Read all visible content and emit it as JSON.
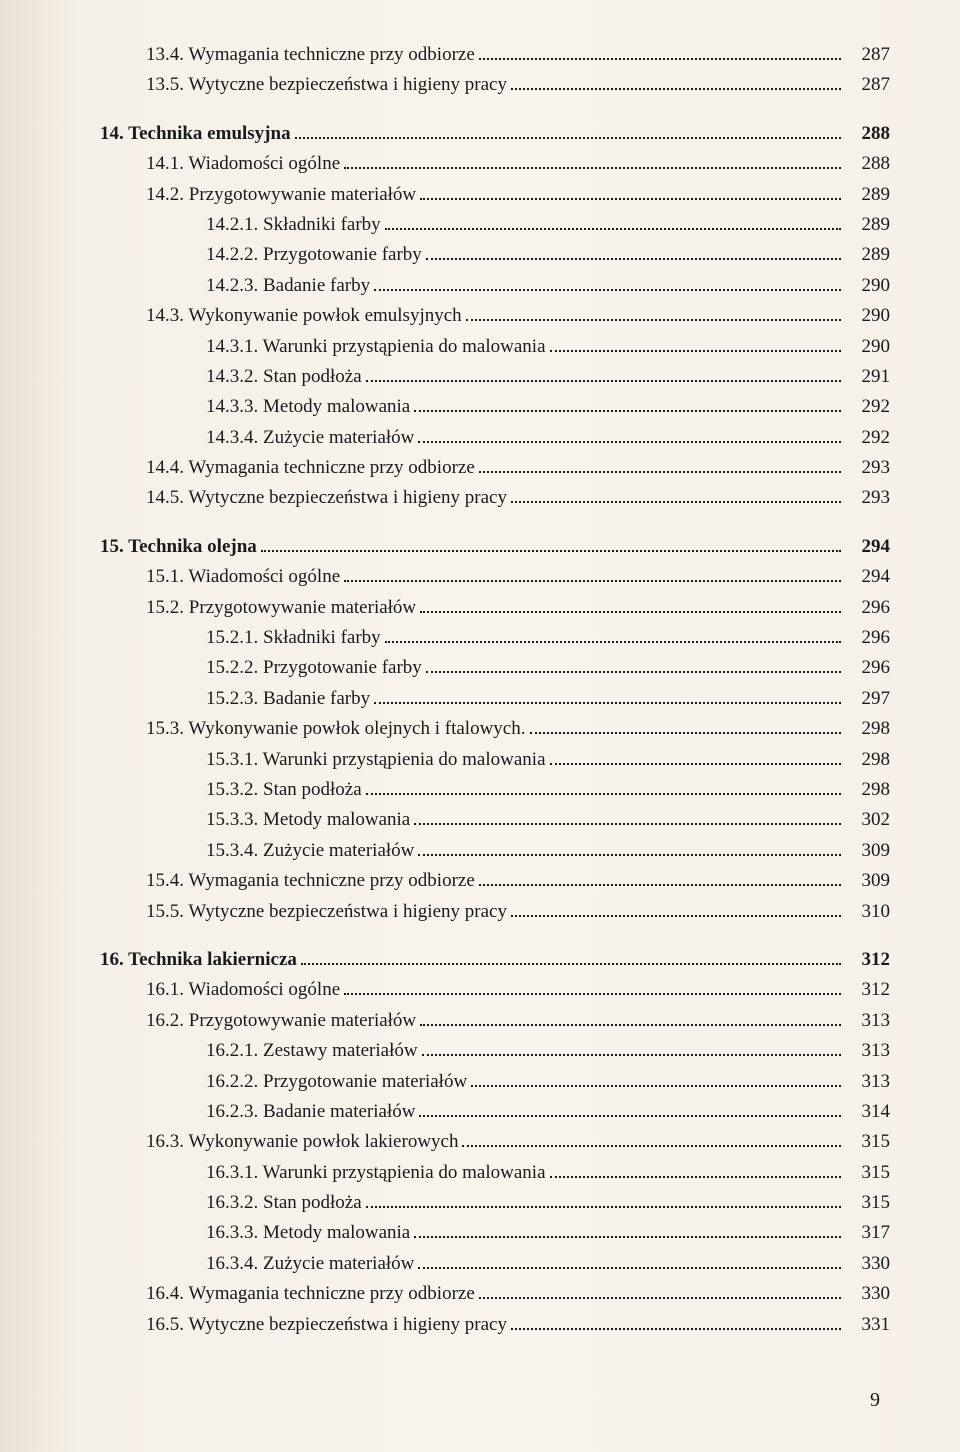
{
  "page_number": "9",
  "entries": [
    {
      "indent": 1,
      "bold": false,
      "label": "13.4. Wymagania techniczne przy odbiorze",
      "page": "287"
    },
    {
      "indent": 1,
      "bold": false,
      "label": "13.5. Wytyczne bezpieczeństwa i higieny pracy",
      "page": "287"
    },
    {
      "gap": true
    },
    {
      "indent": 0,
      "bold": true,
      "label": "14. Technika emulsyjna",
      "page": "288"
    },
    {
      "indent": 1,
      "bold": false,
      "label": "14.1. Wiadomości ogólne",
      "page": "288"
    },
    {
      "indent": 1,
      "bold": false,
      "label": "14.2. Przygotowywanie materiałów",
      "page": "289"
    },
    {
      "indent": 2,
      "bold": false,
      "label": "14.2.1. Składniki farby",
      "page": "289"
    },
    {
      "indent": 2,
      "bold": false,
      "label": "14.2.2. Przygotowanie farby",
      "page": "289"
    },
    {
      "indent": 2,
      "bold": false,
      "label": "14.2.3. Badanie farby",
      "page": "290"
    },
    {
      "indent": 1,
      "bold": false,
      "label": "14.3. Wykonywanie powłok emulsyjnych",
      "page": "290"
    },
    {
      "indent": 2,
      "bold": false,
      "label": "14.3.1. Warunki przystąpienia do malowania",
      "page": "290"
    },
    {
      "indent": 2,
      "bold": false,
      "label": "14.3.2. Stan podłoża",
      "page": "291"
    },
    {
      "indent": 2,
      "bold": false,
      "label": "14.3.3. Metody malowania",
      "page": "292"
    },
    {
      "indent": 2,
      "bold": false,
      "label": "14.3.4. Zużycie materiałów",
      "page": "292"
    },
    {
      "indent": 1,
      "bold": false,
      "label": "14.4. Wymagania techniczne przy odbiorze",
      "page": "293"
    },
    {
      "indent": 1,
      "bold": false,
      "label": "14.5. Wytyczne bezpieczeństwa i higieny pracy",
      "page": "293"
    },
    {
      "gap": true
    },
    {
      "indent": 0,
      "bold": true,
      "label": "15. Technika olejna",
      "page": "294"
    },
    {
      "indent": 1,
      "bold": false,
      "label": "15.1. Wiadomości ogólne",
      "page": "294"
    },
    {
      "indent": 1,
      "bold": false,
      "label": "15.2. Przygotowywanie materiałów",
      "page": "296"
    },
    {
      "indent": 2,
      "bold": false,
      "label": "15.2.1. Składniki farby",
      "page": "296"
    },
    {
      "indent": 2,
      "bold": false,
      "label": "15.2.2. Przygotowanie farby",
      "page": "296"
    },
    {
      "indent": 2,
      "bold": false,
      "label": "15.2.3. Badanie farby",
      "page": "297"
    },
    {
      "indent": 1,
      "bold": false,
      "label": "15.3. Wykonywanie powłok olejnych i ftalowych.",
      "page": "298"
    },
    {
      "indent": 2,
      "bold": false,
      "label": "15.3.1. Warunki przystąpienia do malowania",
      "page": "298"
    },
    {
      "indent": 2,
      "bold": false,
      "label": "15.3.2. Stan podłoża",
      "page": "298"
    },
    {
      "indent": 2,
      "bold": false,
      "label": "15.3.3. Metody malowania",
      "page": "302"
    },
    {
      "indent": 2,
      "bold": false,
      "label": "15.3.4. Zużycie materiałów",
      "page": "309"
    },
    {
      "indent": 1,
      "bold": false,
      "label": "15.4. Wymagania techniczne przy odbiorze",
      "page": "309"
    },
    {
      "indent": 1,
      "bold": false,
      "label": "15.5. Wytyczne bezpieczeństwa i higieny pracy",
      "page": "310"
    },
    {
      "gap": true
    },
    {
      "indent": 0,
      "bold": true,
      "label": "16. Technika lakiernicza",
      "page": "312"
    },
    {
      "indent": 1,
      "bold": false,
      "label": "16.1. Wiadomości ogólne",
      "page": "312"
    },
    {
      "indent": 1,
      "bold": false,
      "label": "16.2. Przygotowywanie materiałów",
      "page": "313"
    },
    {
      "indent": 2,
      "bold": false,
      "label": "16.2.1. Zestawy materiałów",
      "page": "313"
    },
    {
      "indent": 2,
      "bold": false,
      "label": "16.2.2. Przygotowanie materiałów",
      "page": "313"
    },
    {
      "indent": 2,
      "bold": false,
      "label": "16.2.3. Badanie materiałów",
      "page": "314"
    },
    {
      "indent": 1,
      "bold": false,
      "label": "16.3. Wykonywanie powłok lakierowych",
      "page": "315"
    },
    {
      "indent": 2,
      "bold": false,
      "label": "16.3.1. Warunki przystąpienia do malowania",
      "page": "315"
    },
    {
      "indent": 2,
      "bold": false,
      "label": "16.3.2. Stan podłoża",
      "page": "315"
    },
    {
      "indent": 2,
      "bold": false,
      "label": "16.3.3. Metody malowania",
      "page": "317"
    },
    {
      "indent": 2,
      "bold": false,
      "label": "16.3.4. Zużycie materiałów",
      "page": "330"
    },
    {
      "indent": 1,
      "bold": false,
      "label": "16.4. Wymagania techniczne przy odbiorze",
      "page": "330"
    },
    {
      "indent": 1,
      "bold": false,
      "label": "16.5. Wytyczne bezpieczeństwa i higieny pracy",
      "page": "331"
    }
  ]
}
